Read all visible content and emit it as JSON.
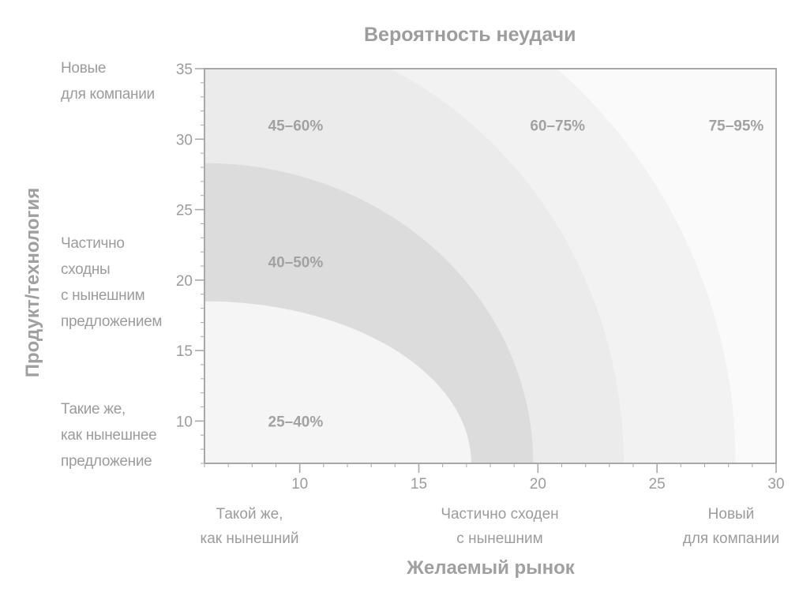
{
  "chart_data": {
    "type": "area",
    "title": "Вероятность неудачи",
    "xlabel": "Желаемый рынок",
    "ylabel": "Продукт/технология",
    "xlim": [
      6,
      30
    ],
    "ylim": [
      7,
      35
    ],
    "x_ticks": [
      10,
      15,
      20,
      25,
      30
    ],
    "y_ticks": [
      10,
      15,
      20,
      25,
      30,
      35
    ],
    "grid": false,
    "regions": [
      {
        "label": "25–40%",
        "boundary": {
          "x_at_ymin": 17.2,
          "y_at_xmin": 18.5
        },
        "color": "#f5f5f5",
        "label_at": [
          9,
          10
        ]
      },
      {
        "label": "40–50%",
        "boundary": {
          "x_at_ymin": 19.8,
          "y_at_xmin": 28.3
        },
        "color": "#dcdcdc",
        "label_at": [
          9,
          21.3
        ]
      },
      {
        "label": "45–60%",
        "boundary": {
          "x_at_ymin": 23.6,
          "y_at_xmin": 35,
          "x_at_ymax": 13.8
        },
        "color": "#ebebeb",
        "label_at": [
          9,
          31
        ]
      },
      {
        "label": "60–75%",
        "boundary": {
          "x_at_ymin": 28.3,
          "y_at_xmin": 35,
          "x_at_ymax": 20.8
        },
        "color": "#f2f2f2",
        "label_at": [
          20,
          31
        ]
      },
      {
        "label": "75–95%",
        "boundary": null,
        "color": "#fafafa",
        "label_at": [
          27.5,
          31
        ]
      }
    ],
    "y_category_labels": [
      {
        "lines": [
          "Новые",
          "для компании"
        ]
      },
      {
        "lines": [
          "Частично",
          "сходны",
          "с нынешним",
          "предложением"
        ]
      },
      {
        "lines": [
          "Такие же,",
          "как нынешнее",
          "предложение"
        ]
      }
    ],
    "x_category_labels": [
      {
        "lines": [
          "Такой же,",
          "как нынешний"
        ]
      },
      {
        "lines": [
          "Частично сходен",
          "с нынешним"
        ]
      },
      {
        "lines": [
          "Новый",
          "для компании"
        ]
      }
    ],
    "axis_color": "#a8a8a8",
    "label_color": "#9c9c9c"
  }
}
